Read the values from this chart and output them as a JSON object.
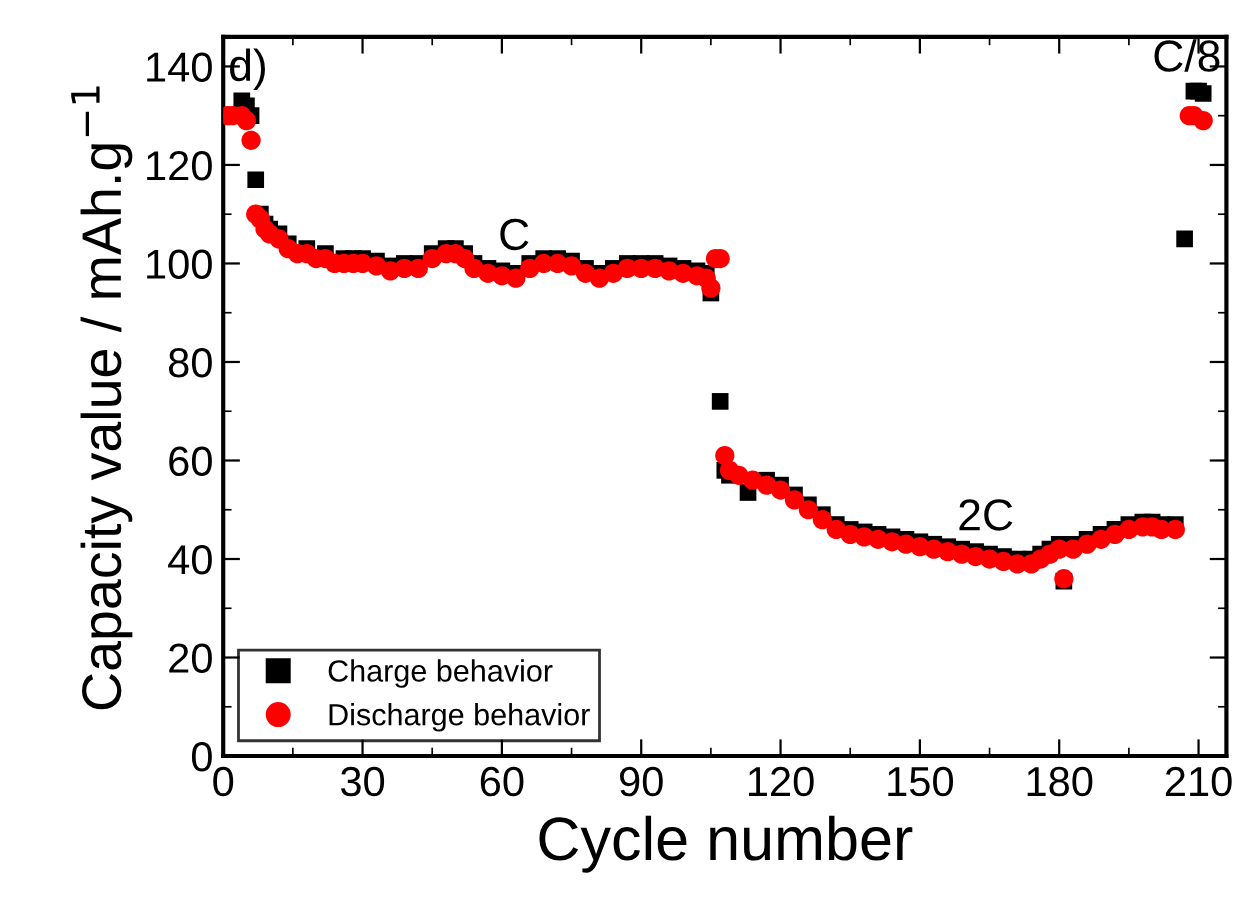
{
  "chart_data": {
    "type": "scatter",
    "xlabel": "Cycle number",
    "ylabel": "Capacity value / mAh.g$^{−1}$",
    "xlim": [
      0,
      216
    ],
    "xticks": [
      0,
      30,
      60,
      90,
      120,
      150,
      180,
      210
    ],
    "ylim": [
      0,
      146
    ],
    "yticks": [
      0,
      20,
      40,
      60,
      80,
      100,
      120,
      140
    ],
    "grid": false,
    "legend": "bottom left",
    "annotations": [
      "d)",
      "C",
      "2C",
      "C/8"
    ],
    "series": [
      {
        "name": "Charge behavior",
        "color": "#000000",
        "marker": "square",
        "x": [
          4,
          5,
          6,
          7,
          8,
          9,
          10,
          12,
          14,
          18,
          22,
          26,
          28,
          30,
          33,
          36,
          39,
          42,
          45,
          48,
          50,
          52,
          54,
          57,
          60,
          63,
          66,
          69,
          72,
          75,
          78,
          81,
          84,
          87,
          90,
          93,
          96,
          99,
          102,
          104,
          105,
          107,
          108,
          109,
          111,
          113,
          117,
          120,
          123,
          126,
          129,
          132,
          135,
          138,
          141,
          144,
          147,
          150,
          153,
          156,
          159,
          162,
          165,
          168,
          171,
          174,
          176,
          178,
          180,
          181,
          183,
          186,
          189,
          192,
          195,
          198,
          200,
          202,
          205,
          207,
          209,
          210,
          211
        ],
        "values": [
          133,
          132,
          130,
          117,
          110,
          108,
          107,
          106,
          104,
          103,
          102,
          101,
          101,
          101,
          100.5,
          99.5,
          100,
          100,
          102,
          103,
          103,
          102,
          100,
          99,
          98.5,
          98,
          100,
          101,
          101,
          100.5,
          99,
          98,
          99,
          100,
          100,
          100,
          99.5,
          99,
          98.5,
          98,
          94,
          72,
          58,
          57,
          null,
          53.5,
          56,
          55,
          53,
          51,
          49,
          47,
          46,
          45.5,
          45,
          44.5,
          44,
          43.5,
          43,
          42.5,
          42,
          41.5,
          41,
          40.5,
          40,
          40,
          41,
          42,
          43,
          35.5,
          43,
          44,
          45,
          46,
          47,
          47.5,
          47.5,
          47,
          47,
          105,
          135,
          135,
          134.5
        ]
      },
      {
        "name": "Discharge behavior",
        "color": "#ff0000",
        "marker": "circle",
        "x": [
          1,
          2,
          4,
          5,
          6,
          7,
          8,
          9,
          10,
          12,
          14,
          16,
          18,
          20,
          22,
          24,
          26,
          28,
          30,
          33,
          36,
          39,
          42,
          45,
          48,
          50,
          52,
          54,
          57,
          60,
          63,
          66,
          69,
          72,
          75,
          78,
          81,
          84,
          87,
          90,
          93,
          96,
          99,
          102,
          104,
          105,
          106,
          107,
          108,
          109,
          111,
          114,
          117,
          120,
          123,
          126,
          129,
          132,
          135,
          138,
          141,
          144,
          147,
          150,
          153,
          156,
          159,
          162,
          165,
          168,
          171,
          174,
          176,
          178,
          180,
          181,
          183,
          186,
          189,
          192,
          195,
          198,
          200,
          202,
          205,
          208,
          209,
          211
        ],
        "values": [
          130,
          130,
          130,
          129,
          125,
          110,
          109,
          107,
          106,
          105,
          103,
          102,
          102,
          101,
          101,
          100,
          100,
          100,
          100,
          99.5,
          98.5,
          99,
          99,
          101,
          102,
          102,
          101,
          99,
          98,
          97.5,
          97,
          99,
          100,
          100,
          99.5,
          98,
          97,
          98,
          99,
          99,
          99,
          98.5,
          98,
          97.5,
          97,
          95,
          101,
          101,
          61,
          58,
          57,
          56,
          55,
          54,
          52,
          50,
          48,
          46,
          45,
          44.5,
          44,
          43.5,
          43,
          42.5,
          42,
          41.5,
          41,
          40.5,
          40,
          39.5,
          39,
          39,
          40,
          41,
          42,
          36,
          42,
          43,
          44,
          45,
          46,
          46.5,
          46.5,
          46,
          46,
          130,
          130,
          129
        ]
      }
    ]
  }
}
